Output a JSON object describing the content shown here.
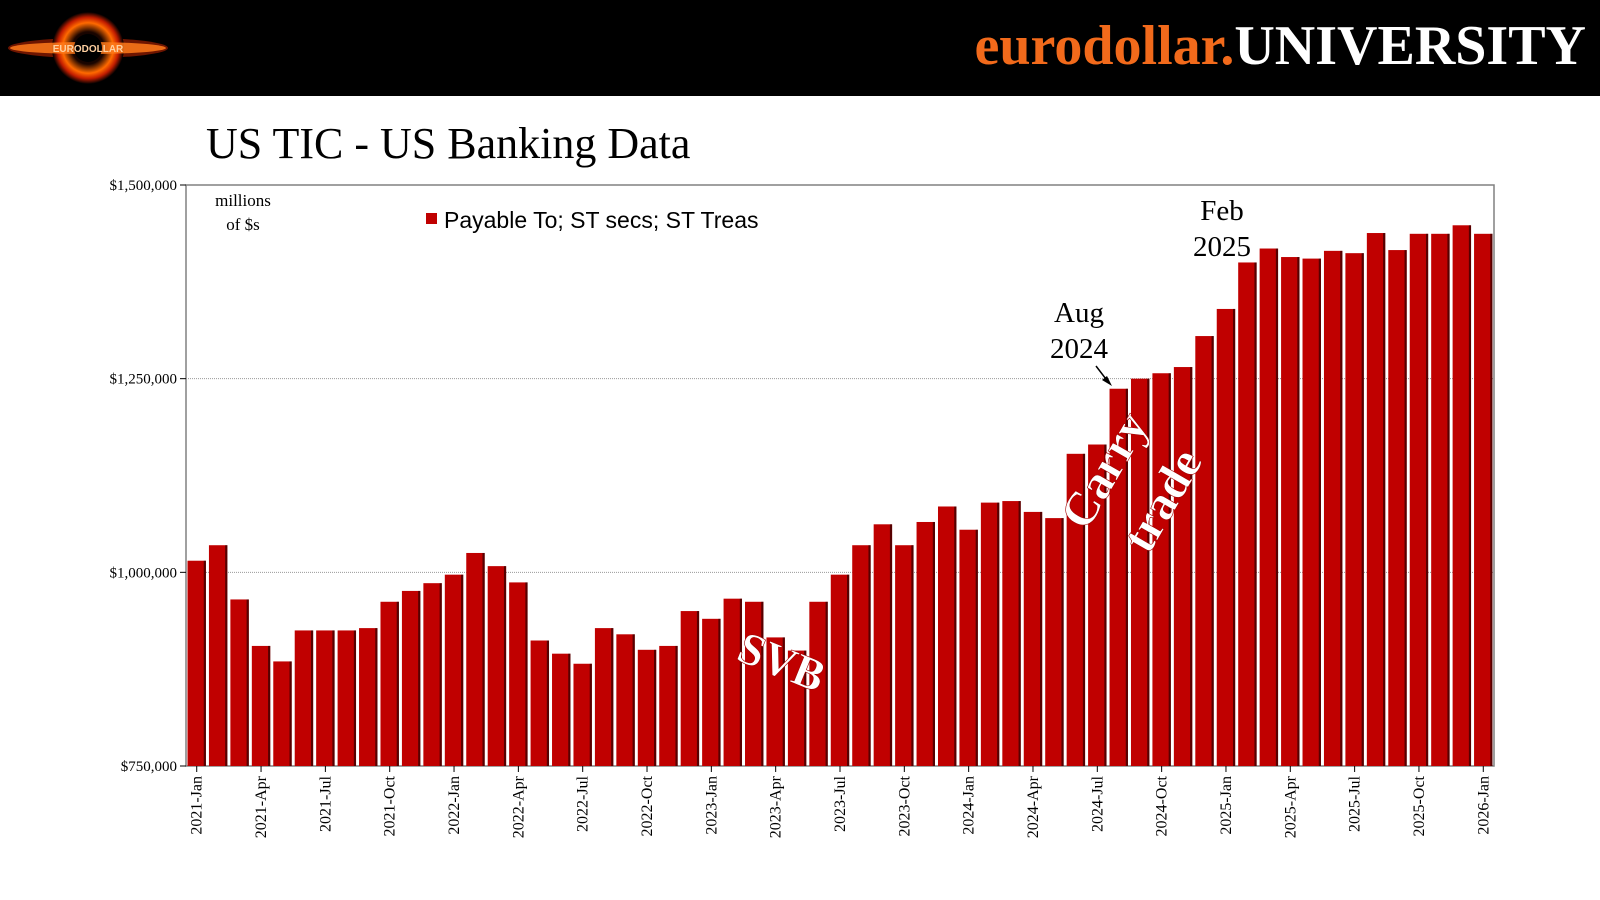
{
  "header": {
    "brand_part1": "eurodollar.",
    "brand_part2": "UNIVERSITY",
    "logo_text": "EURODOLLAR"
  },
  "colors": {
    "bar": "#c00000",
    "brand_orange": "#f26a1b",
    "header_bg": "#000000"
  },
  "chart_data": {
    "type": "bar",
    "title": "US TIC - US Banking Data",
    "ylabel": "millions of $s",
    "ylabel_lines": [
      "millions",
      "of $s"
    ],
    "ylim": [
      750000,
      1500000
    ],
    "yticks": [
      750000,
      1000000,
      1250000,
      1500000
    ],
    "ytick_labels": [
      "$750,000",
      "$1,000,000",
      "$1,250,000",
      "$1,500,000"
    ],
    "gridlines": [
      1000000,
      1250000
    ],
    "legend": "Payable To; ST secs; ST Treas",
    "legend_position": "top-left",
    "tick_labels": [
      "2021-Jan",
      "2021-Apr",
      "2021-Jul",
      "2021-Oct",
      "2022-Jan",
      "2022-Apr",
      "2022-Jul",
      "2022-Oct",
      "2023-Jan",
      "2023-Apr",
      "2023-Jul",
      "2023-Oct",
      "2024-Jan",
      "2024-Apr",
      "2024-Jul",
      "2024-Oct",
      "2025-Jan",
      "2025-Apr",
      "2025-Jul",
      "2025-Oct",
      "2026-Jan"
    ],
    "tick_every": 3,
    "series": [
      {
        "name": "Payable To; ST secs; ST Treas",
        "values": [
          1015000,
          1035000,
          965000,
          905000,
          885000,
          925000,
          925000,
          925000,
          928000,
          962000,
          976000,
          986000,
          997000,
          1025000,
          1008000,
          987000,
          912000,
          895000,
          882000,
          928000,
          920000,
          900000,
          905000,
          950000,
          940000,
          966000,
          962000,
          916000,
          899000,
          962000,
          997000,
          1035000,
          1062000,
          1035000,
          1065000,
          1085000,
          1055000,
          1090000,
          1092000,
          1078000,
          1070000,
          1153000,
          1165000,
          1237000,
          1250000,
          1257000,
          1265000,
          1305000,
          1340000,
          1400000,
          1418000,
          1407000,
          1405000,
          1415000,
          1412000,
          1438000,
          1416000,
          1437000,
          1437000,
          1448000,
          1437000
        ]
      }
    ],
    "annotations": [
      {
        "name": "svb",
        "text": "SVB"
      },
      {
        "name": "carry-trade",
        "lines": [
          "Carry",
          "trade"
        ]
      },
      {
        "name": "aug-2024",
        "lines": [
          "Aug",
          "2024"
        ]
      },
      {
        "name": "feb-2025",
        "lines": [
          "Feb",
          "2025"
        ]
      }
    ]
  }
}
